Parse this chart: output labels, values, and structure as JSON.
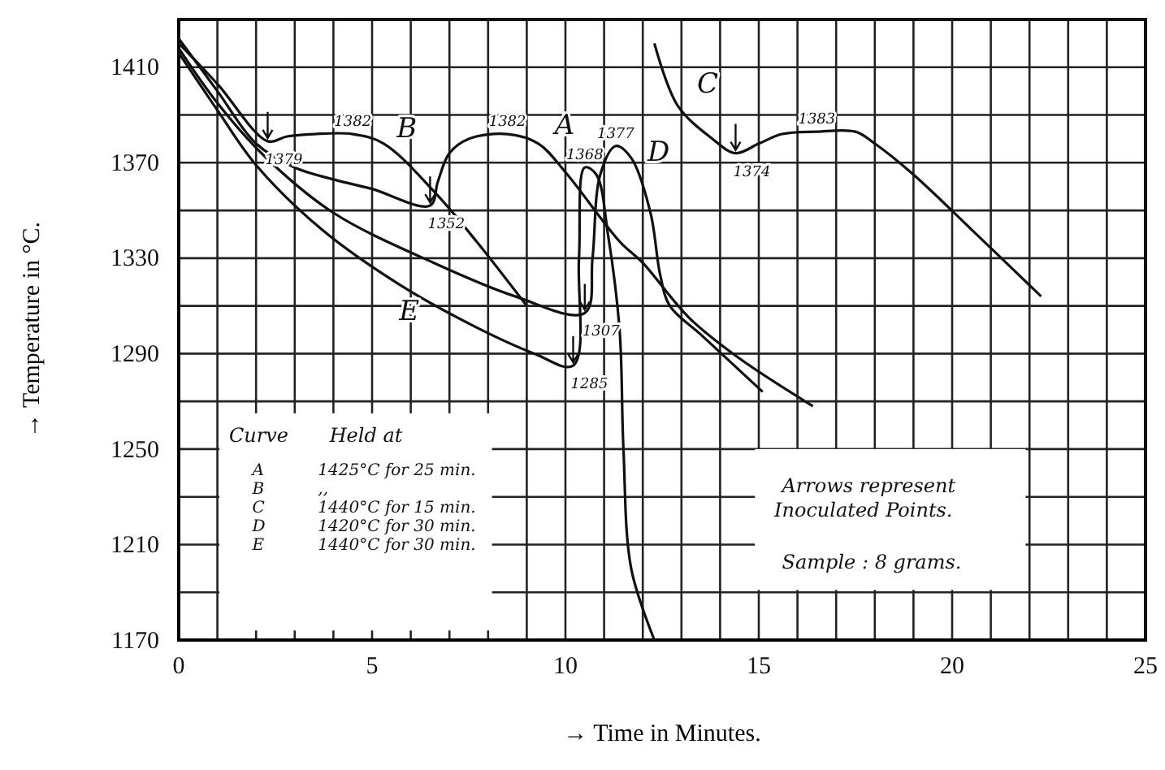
{
  "chart_data": {
    "type": "line",
    "xlabel": "→  Time in Minutes.",
    "ylabel": "→  Temperature in °C.",
    "xlim": [
      0,
      25
    ],
    "xticks": [
      0,
      5,
      10,
      15,
      20,
      25
    ],
    "ylim": [
      1170,
      1430
    ],
    "yticks": [
      1170,
      1210,
      1250,
      1290,
      1330,
      1370,
      1410
    ],
    "grid": true,
    "series": [
      {
        "name": "A",
        "color": "#111111",
        "x": [
          0,
          1,
          2,
          3,
          4,
          5,
          6.5,
          6.7,
          7,
          7.5,
          8.5,
          9.3,
          10,
          11.4,
          12,
          13.2,
          14.5,
          16.4
        ],
        "values": [
          1422,
          1400,
          1378,
          1368,
          1363,
          1359,
          1352,
          1362,
          1374,
          1380,
          1382,
          1378,
          1366,
          1337,
          1328,
          1305,
          1288,
          1268
        ]
      },
      {
        "name": "B",
        "color": "#111111",
        "x": [
          0,
          1,
          2.3,
          2.8,
          3.5,
          4.5,
          5.3,
          6.6,
          7.7,
          9
        ],
        "values": [
          1420,
          1403,
          1379,
          1381,
          1382,
          1382,
          1378,
          1358,
          1337,
          1310
        ]
      },
      {
        "name": "C",
        "color": "#111111",
        "x": [
          12.3,
          12.9,
          13.8,
          14.4,
          15,
          15.6,
          16.5,
          17.5,
          18,
          19,
          20.5,
          22.3
        ],
        "values": [
          1420,
          1394,
          1380,
          1374,
          1378,
          1382,
          1383,
          1383,
          1378,
          1365,
          1342,
          1314
        ]
      },
      {
        "name": "D",
        "color": "#111111",
        "x": [
          0,
          1,
          2.2,
          4,
          6.6,
          8.7,
          10.5,
          10.7,
          10.9,
          11.3,
          11.7,
          12.2,
          12.45,
          12.7,
          13.5,
          15.1
        ],
        "values": [
          1418,
          1395,
          1373,
          1349,
          1328,
          1314,
          1307,
          1330,
          1365,
          1377,
          1372,
          1349,
          1323,
          1310,
          1298,
          1274
        ]
      },
      {
        "name": "E",
        "color": "#111111",
        "x": [
          0,
          1,
          2,
          3.7,
          5.7,
          7.7,
          9.2,
          10.2,
          10.35,
          10.5,
          10.8,
          11.1,
          11.4,
          11.5,
          11.7,
          12.3
        ],
        "values": [
          1416,
          1392,
          1369,
          1342,
          1319,
          1301,
          1290,
          1285,
          1330,
          1368,
          1365,
          1340,
          1300,
          1250,
          1200,
          1170
        ]
      }
    ],
    "annotations": [
      {
        "text": "1379",
        "x": 2.3,
        "y": 1379
      },
      {
        "text": "1382",
        "x": 4.5,
        "y": 1382
      },
      {
        "text": "1352",
        "x": 6.5,
        "y": 1352
      },
      {
        "text": "1382",
        "x": 8.5,
        "y": 1382
      },
      {
        "text": "1368",
        "x": 10.5,
        "y": 1368
      },
      {
        "text": "1377",
        "x": 11.3,
        "y": 1377
      },
      {
        "text": "1307",
        "x": 10.5,
        "y": 1307
      },
      {
        "text": "1285",
        "x": 10.2,
        "y": 1285
      },
      {
        "text": "1374",
        "x": 14.4,
        "y": 1374
      },
      {
        "text": "1383",
        "x": 16.5,
        "y": 1383
      },
      "Curve",
      "Held at",
      "A",
      "1425°C for 25 min.",
      "B",
      ",,",
      "C",
      "1440°C for 15 min.",
      "D",
      "1420°C for 30 min.",
      "E",
      "1440°C for 30 min.",
      "Arrows represent Inoculated Points.",
      "Sample : 8 grams."
    ]
  }
}
